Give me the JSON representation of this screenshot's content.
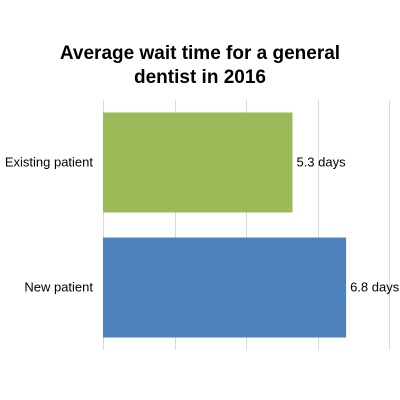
{
  "chart_data": {
    "type": "bar",
    "orientation": "horizontal",
    "title": "Average wait time for a general\ndentist in 2016",
    "categories": [
      "Existing patient",
      "New patient"
    ],
    "values": [
      5.3,
      6.8
    ],
    "data_labels": [
      "5.3 days",
      "6.8 days"
    ],
    "bar_colors": [
      "#9bbb59",
      "#4f81bd"
    ],
    "xlim": [
      0,
      8
    ],
    "x_tick_step": 2,
    "grid": true,
    "legend": "none",
    "xlabel": "",
    "ylabel": ""
  }
}
